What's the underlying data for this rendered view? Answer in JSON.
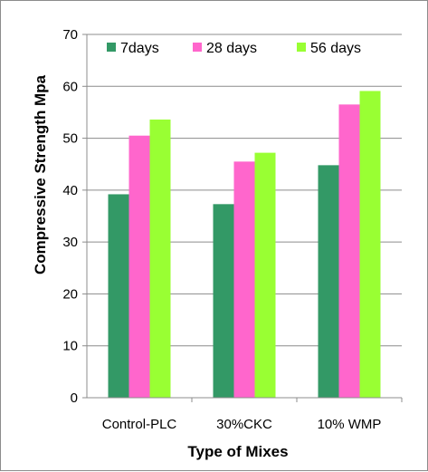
{
  "chart_data": {
    "type": "bar",
    "categories": [
      "Control-PLC",
      "30%CKC",
      "10% WMP"
    ],
    "series": [
      {
        "name": "7days",
        "values": [
          39.2,
          37.3,
          44.8
        ],
        "color": "#339966"
      },
      {
        "name": "28 days",
        "values": [
          50.5,
          45.5,
          56.5
        ],
        "color": "#ff66cc"
      },
      {
        "name": "56 days",
        "values": [
          53.6,
          47.2,
          59.1
        ],
        "color": "#99ff33"
      }
    ],
    "title": "",
    "xlabel": "Type of Mixes",
    "ylabel": "Compressive Strength Mpa",
    "ylim": [
      0,
      70
    ],
    "yticks": [
      0,
      10,
      20,
      30,
      40,
      50,
      60,
      70
    ],
    "grid": true,
    "legend_position": "top"
  }
}
